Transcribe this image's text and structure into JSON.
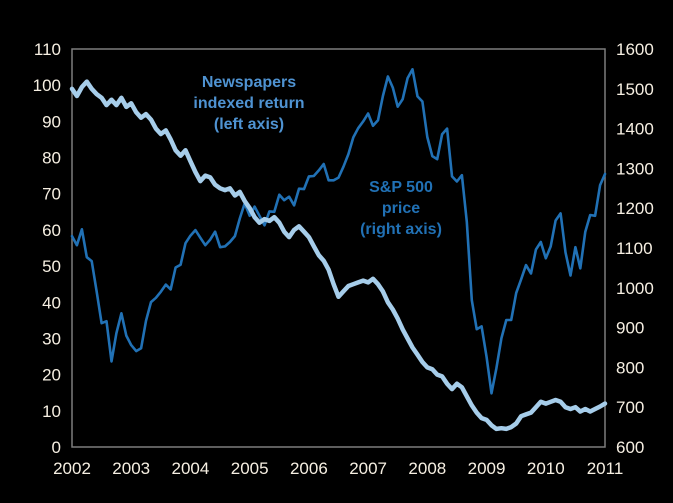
{
  "figure": {
    "background": "#000000",
    "plot_border_color": "#7d7d7d",
    "tick_label_color": "#f6efe2"
  },
  "chart_data": {
    "type": "line",
    "title": "",
    "legend_position": "inline-annotations",
    "grid": false,
    "x_tick_labels": [
      "2002",
      "2003",
      "2004",
      "2005",
      "2006",
      "2007",
      "2008",
      "2009",
      "2010",
      "2011"
    ],
    "x_range_months": "Jan 2002 - Jan 2011",
    "left_axis": {
      "min": 0,
      "max": 110,
      "step": 10,
      "ticks": [
        "0",
        "10",
        "20",
        "30",
        "40",
        "50",
        "60",
        "70",
        "80",
        "90",
        "100",
        "110"
      ]
    },
    "right_axis": {
      "min": 600,
      "max": 1600,
      "step": 100,
      "ticks": [
        "600",
        "700",
        "800",
        "900",
        "1000",
        "1100",
        "1200",
        "1300",
        "1400",
        "1500",
        "1600"
      ]
    },
    "series": [
      {
        "name": "Newspapers indexed return",
        "axis": "left",
        "color": "#a6cdea",
        "line_width": 4.5,
        "annotation": "Newspapers\nindexed return\n(left axis)",
        "annotation_color": "#4f93d2",
        "interval": "monthly",
        "values": [
          99,
          97,
          99.5,
          101,
          99,
          97.5,
          96.5,
          94.5,
          96,
          94.5,
          96.5,
          94,
          95,
          92.5,
          91,
          92,
          90.5,
          88,
          86.5,
          87.5,
          85,
          82,
          80.5,
          82,
          79,
          76,
          73.5,
          75,
          74.5,
          72.5,
          71.5,
          71,
          71.5,
          69.5,
          70.5,
          68,
          66,
          63.5,
          62,
          63,
          62.5,
          63.5,
          62,
          59.5,
          58,
          60,
          61,
          59.5,
          58,
          55.5,
          53,
          51.5,
          49,
          45,
          41.5,
          43,
          44.5,
          45,
          45.5,
          46,
          45.5,
          46.5,
          45,
          43,
          40,
          38,
          35.5,
          32.5,
          30,
          27.5,
          25.5,
          23.5,
          22,
          21.5,
          20,
          19.5,
          17.5,
          16,
          17.5,
          16.5,
          14,
          11.5,
          9.5,
          8,
          7.5,
          6,
          5,
          5.2,
          5,
          5.5,
          6.5,
          8.5,
          9,
          9.5,
          11,
          12.5,
          12,
          12.5,
          13,
          12.5,
          11,
          10.5,
          11,
          9.8,
          10.5,
          9.8,
          10.5,
          11.2,
          12
        ]
      },
      {
        "name": "S&P 500 price",
        "axis": "right",
        "color": "#2171b5",
        "line_width": 2.6,
        "annotation": "S&P 500\nprice\n(right axis)",
        "annotation_color": "#2171b5",
        "interval": "monthly",
        "values": [
          1130,
          1107,
          1147,
          1077,
          1067,
          990,
          911,
          916,
          815,
          886,
          936,
          880,
          856,
          841,
          848,
          917,
          964,
          975,
          990,
          1008,
          996,
          1051,
          1058,
          1112,
          1131,
          1145,
          1126,
          1107,
          1121,
          1141,
          1102,
          1104,
          1115,
          1130,
          1174,
          1212,
          1181,
          1204,
          1181,
          1157,
          1192,
          1191,
          1234,
          1220,
          1229,
          1207,
          1249,
          1248,
          1280,
          1281,
          1295,
          1311,
          1270,
          1270,
          1277,
          1304,
          1336,
          1378,
          1401,
          1418,
          1438,
          1407,
          1421,
          1482,
          1531,
          1503,
          1455,
          1474,
          1527,
          1549,
          1481,
          1468,
          1379,
          1331,
          1323,
          1386,
          1400,
          1280,
          1267,
          1283,
          1166,
          969,
          896,
          903,
          826,
          735,
          798,
          873,
          919,
          919,
          987,
          1021,
          1057,
          1036,
          1096,
          1115,
          1074,
          1104,
          1169,
          1187,
          1089,
          1031,
          1102,
          1049,
          1141,
          1183,
          1181,
          1258,
          1286
        ]
      }
    ]
  }
}
